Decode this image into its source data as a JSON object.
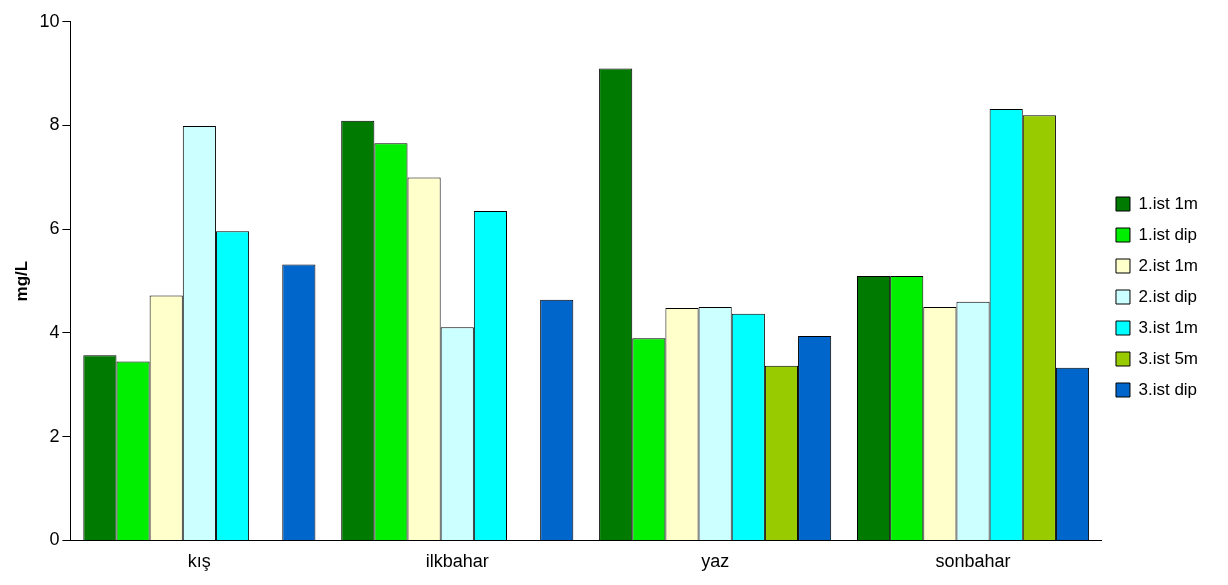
{
  "chart_data": {
    "type": "bar",
    "ylabel": "mg/L",
    "categories": [
      "kış",
      "ilkbahar",
      "yaz",
      "sonbahar"
    ],
    "series": [
      {
        "name": "1.ist 1m",
        "color": "#007a00",
        "values": [
          3.57,
          8.09,
          9.1,
          5.1
        ]
      },
      {
        "name": "1.ist dip",
        "color": "#00ee00",
        "values": [
          3.45,
          7.66,
          3.9,
          5.1
        ]
      },
      {
        "name": "2.ist 1m",
        "color": "#ffffcc",
        "values": [
          4.72,
          7.0,
          4.48,
          4.5
        ]
      },
      {
        "name": "2.ist dip",
        "color": "#ccffff",
        "values": [
          7.99,
          4.11,
          4.5,
          4.6
        ]
      },
      {
        "name": "3.ist 1m",
        "color": "#00ffff",
        "values": [
          5.96,
          6.35,
          4.37,
          8.32
        ]
      },
      {
        "name": "3.ist 5m",
        "color": "#99cc00",
        "values": [
          null,
          null,
          3.37,
          8.2
        ]
      },
      {
        "name": "3.ist dip",
        "color": "#0066cc",
        "values": [
          5.32,
          4.64,
          3.94,
          3.33
        ]
      }
    ],
    "ylim": [
      0,
      10
    ],
    "yticks": [
      0,
      2,
      4,
      6,
      8,
      10
    ],
    "grid": false,
    "legend": "right"
  }
}
